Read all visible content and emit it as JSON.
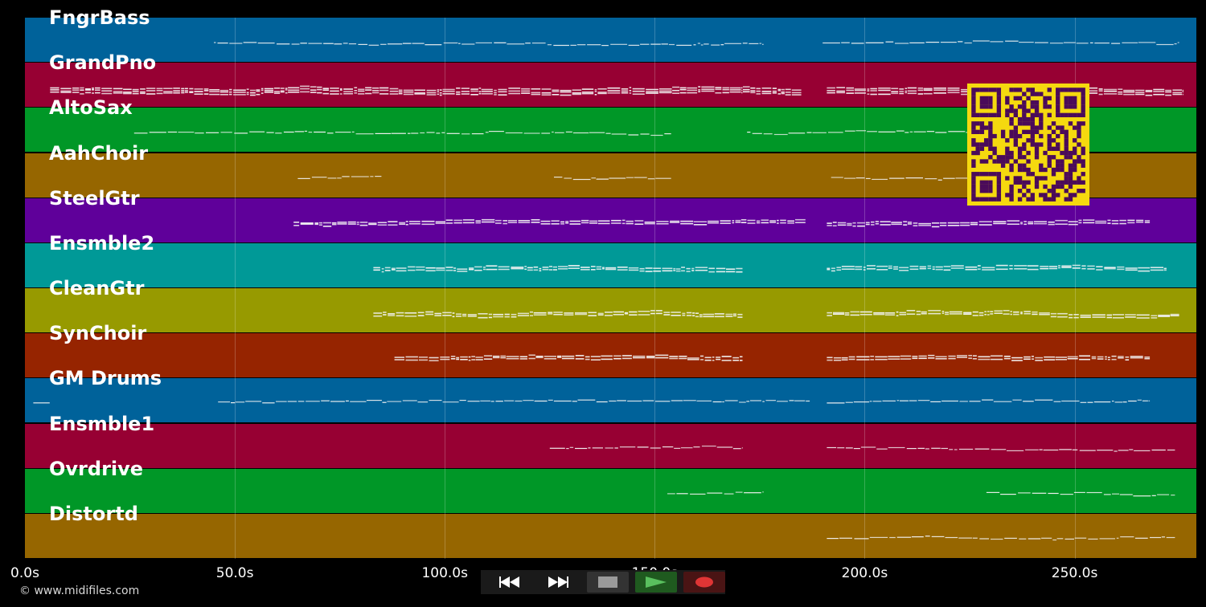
{
  "app": {
    "copyright": "© www.midifiles.com"
  },
  "tracks": [
    {
      "name": "FngrBass",
      "color": "#00629a",
      "density": 1,
      "segments": [
        [
          45,
          176
        ],
        [
          190,
          275
        ]
      ]
    },
    {
      "name": "GrandPno",
      "color": "#970033",
      "density": 4,
      "segments": [
        [
          6,
          171
        ],
        [
          171,
          185
        ],
        [
          191,
          276
        ]
      ]
    },
    {
      "name": "AltoSax",
      "color": "#009727",
      "density": 1,
      "segments": [
        [
          26,
          154
        ],
        [
          172,
          225
        ]
      ]
    },
    {
      "name": "AahChoir",
      "color": "#966600",
      "density": 1,
      "segments": [
        [
          65,
          85
        ],
        [
          126,
          154
        ],
        [
          192,
          225
        ]
      ]
    },
    {
      "name": "SteelGtr",
      "color": "#5f009a",
      "density": 3,
      "segments": [
        [
          64,
          186
        ],
        [
          191,
          268
        ]
      ]
    },
    {
      "name": "Ensmble2",
      "color": "#009997",
      "density": 3,
      "segments": [
        [
          83,
          171
        ],
        [
          191,
          272
        ]
      ]
    },
    {
      "name": "CleanGtr",
      "color": "#979a00",
      "density": 3,
      "segments": [
        [
          83,
          171
        ],
        [
          191,
          275
        ]
      ]
    },
    {
      "name": "SynChoir",
      "color": "#962400",
      "density": 3,
      "segments": [
        [
          88,
          171
        ],
        [
          191,
          268
        ]
      ]
    },
    {
      "name": "GM Drums",
      "color": "#00629a",
      "density": 2,
      "segments": [
        [
          2,
          6
        ],
        [
          46,
          187
        ],
        [
          191,
          268
        ]
      ]
    },
    {
      "name": "Ensmble1",
      "color": "#970033",
      "density": 1,
      "segments": [
        [
          125,
          171
        ],
        [
          191,
          274
        ]
      ]
    },
    {
      "name": "Ovrdrive",
      "color": "#009727",
      "density": 1,
      "segments": [
        [
          153,
          176
        ],
        [
          229,
          274
        ]
      ]
    },
    {
      "name": "Distortd",
      "color": "#966600",
      "density": 1,
      "segments": [
        [
          191,
          274
        ]
      ]
    }
  ],
  "timeline": {
    "min_seconds": 0,
    "max_seconds": 279,
    "ticks": [
      {
        "value": 0,
        "label": "0.0s"
      },
      {
        "value": 50,
        "label": "50.0s"
      },
      {
        "value": 100,
        "label": "100.0s"
      },
      {
        "value": 150,
        "label": "150.0s"
      },
      {
        "value": 200,
        "label": "200.0s"
      },
      {
        "value": 250,
        "label": "250.0s"
      }
    ]
  },
  "transport": {
    "buttons": [
      {
        "name": "rewind-button",
        "icon": "rewind-icon",
        "bg": "#0d0d0d"
      },
      {
        "name": "fast-forward-button",
        "icon": "fast-forward-icon",
        "bg": "#0d0d0d"
      },
      {
        "name": "stop-button",
        "icon": "stop-icon",
        "bg": "#333333"
      },
      {
        "name": "play-button",
        "icon": "play-icon",
        "bg": "#1f5a1f"
      },
      {
        "name": "record-button",
        "icon": "record-icon",
        "bg": "#4a1414"
      }
    ]
  },
  "qr": {
    "icon": "qr-code-icon",
    "fg": "#4a0a5a",
    "bg": "#f5d90f"
  }
}
